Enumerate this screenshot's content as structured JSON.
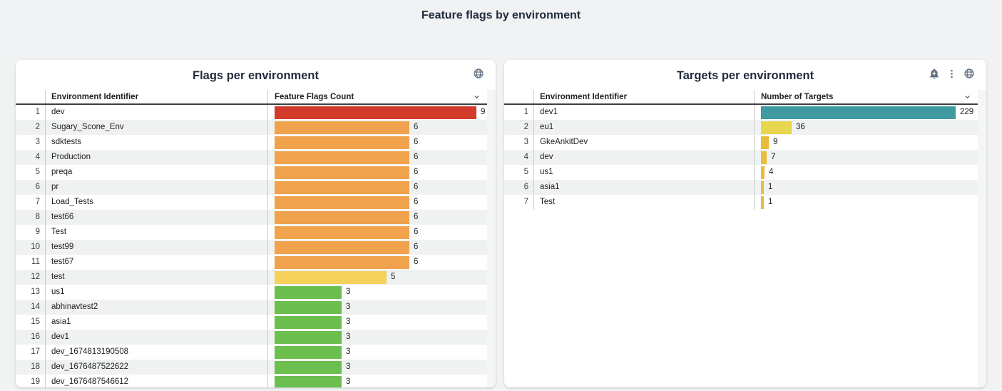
{
  "page": {
    "title": "Feature flags by environment",
    "background": "#f0f2f3"
  },
  "cards": [
    {
      "id": "flags",
      "title": "Flags per environment",
      "icons": [
        "globe-icon"
      ],
      "columns": {
        "name": "Environment Identifier",
        "value": "Feature Flags Count"
      },
      "max_value": 9,
      "rows": [
        {
          "index": 1,
          "name": "dev",
          "value": 9,
          "color": "#d23b2c"
        },
        {
          "index": 2,
          "name": "Sugary_Scone_Env",
          "value": 6,
          "color": "#f0a34c"
        },
        {
          "index": 3,
          "name": "sdktests",
          "value": 6,
          "color": "#f0a34c"
        },
        {
          "index": 4,
          "name": "Production",
          "value": 6,
          "color": "#f0a34c"
        },
        {
          "index": 5,
          "name": "preqa",
          "value": 6,
          "color": "#f0a34c"
        },
        {
          "index": 6,
          "name": "pr",
          "value": 6,
          "color": "#f0a34c"
        },
        {
          "index": 7,
          "name": "Load_Tests",
          "value": 6,
          "color": "#f0a34c"
        },
        {
          "index": 8,
          "name": "test66",
          "value": 6,
          "color": "#f0a34c"
        },
        {
          "index": 9,
          "name": "Test",
          "value": 6,
          "color": "#f0a34c"
        },
        {
          "index": 10,
          "name": "test99",
          "value": 6,
          "color": "#f0a34c"
        },
        {
          "index": 11,
          "name": "test67",
          "value": 6,
          "color": "#f0a34c"
        },
        {
          "index": 12,
          "name": "test",
          "value": 5,
          "color": "#f5d05a"
        },
        {
          "index": 13,
          "name": "us1",
          "value": 3,
          "color": "#6cbf4e"
        },
        {
          "index": 14,
          "name": "abhinavtest2",
          "value": 3,
          "color": "#6cbf4e"
        },
        {
          "index": 15,
          "name": "asia1",
          "value": 3,
          "color": "#6cbf4e"
        },
        {
          "index": 16,
          "name": "dev1",
          "value": 3,
          "color": "#6cbf4e"
        },
        {
          "index": 17,
          "name": "dev_1674813190508",
          "value": 3,
          "color": "#6cbf4e"
        },
        {
          "index": 18,
          "name": "dev_1676487522622",
          "value": 3,
          "color": "#6cbf4e"
        },
        {
          "index": 19,
          "name": "dev_1676487546612",
          "value": 3,
          "color": "#6cbf4e"
        }
      ]
    },
    {
      "id": "targets",
      "title": "Targets per environment",
      "icons": [
        "add-alert-icon",
        "more-options-icon",
        "globe-icon"
      ],
      "columns": {
        "name": "Environment Identifier",
        "value": "Number of Targets"
      },
      "max_value": 229,
      "rows": [
        {
          "index": 1,
          "name": "dev1",
          "value": 229,
          "color": "#3f9aa1"
        },
        {
          "index": 2,
          "name": "eu1",
          "value": 36,
          "color": "#e8d74e"
        },
        {
          "index": 3,
          "name": "GkeAnkitDev",
          "value": 9,
          "color": "#e8bd3d"
        },
        {
          "index": 4,
          "name": "dev",
          "value": 7,
          "color": "#e8bd3d"
        },
        {
          "index": 5,
          "name": "us1",
          "value": 4,
          "color": "#e8bd3d"
        },
        {
          "index": 6,
          "name": "asia1",
          "value": 1,
          "color": "#e8bd3d"
        },
        {
          "index": 7,
          "name": "Test",
          "value": 1,
          "color": "#e8bd3d"
        }
      ]
    }
  ],
  "chart_data": [
    {
      "type": "bar",
      "orientation": "horizontal",
      "title": "Flags per environment",
      "columns": [
        "Environment Identifier",
        "Feature Flags Count"
      ],
      "categories": [
        "dev",
        "Sugary_Scone_Env",
        "sdktests",
        "Production",
        "preqa",
        "pr",
        "Load_Tests",
        "test66",
        "Test",
        "test99",
        "test67",
        "test",
        "us1",
        "abhinavtest2",
        "asia1",
        "dev1",
        "dev_1674813190508",
        "dev_1676487522622",
        "dev_1676487546612"
      ],
      "values": [
        9,
        6,
        6,
        6,
        6,
        6,
        6,
        6,
        6,
        6,
        6,
        5,
        3,
        3,
        3,
        3,
        3,
        3,
        3
      ],
      "xlim": [
        0,
        9
      ],
      "grid": false,
      "legend": false,
      "color_scale": {
        "high": "#d23b2c",
        "mid_high": "#f0a34c",
        "mid": "#f5d05a",
        "low": "#6cbf4e"
      }
    },
    {
      "type": "bar",
      "orientation": "horizontal",
      "title": "Targets per environment",
      "columns": [
        "Environment Identifier",
        "Number of Targets"
      ],
      "categories": [
        "dev1",
        "eu1",
        "GkeAnkitDev",
        "dev",
        "us1",
        "asia1",
        "Test"
      ],
      "values": [
        229,
        36,
        9,
        7,
        4,
        1,
        1
      ],
      "xlim": [
        0,
        229
      ],
      "grid": false,
      "legend": false,
      "color_scale": {
        "high": "#3f9aa1",
        "mid": "#e8d74e",
        "low": "#e8bd3d"
      }
    }
  ]
}
